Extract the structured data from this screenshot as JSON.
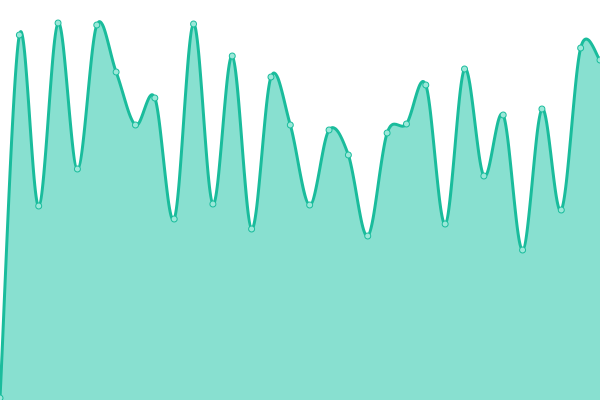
{
  "chart_data": {
    "type": "area",
    "title": "",
    "xlabel": "",
    "ylabel": "",
    "x": [
      0,
      1,
      2,
      3,
      4,
      5,
      6,
      7,
      8,
      9,
      10,
      11,
      12,
      13,
      14,
      15,
      16,
      17,
      18,
      19,
      20,
      21,
      22,
      23,
      24,
      25,
      26,
      27,
      28,
      29,
      30,
      31
    ],
    "values": [
      2,
      365,
      194,
      377,
      231,
      375,
      328,
      275,
      302,
      181,
      376,
      196,
      344,
      171,
      323,
      275,
      195,
      270,
      245,
      164,
      267,
      276,
      315,
      176,
      331,
      224,
      285,
      150,
      291,
      190,
      352,
      340
    ],
    "ylim": [
      0,
      400
    ],
    "grid": false,
    "axes_visible": false,
    "smooth": true,
    "colors": {
      "line": "#1abc9c",
      "fill": "#88e0d0",
      "point_fill": "#9be8d9",
      "point_stroke": "#1abc9c"
    }
  }
}
